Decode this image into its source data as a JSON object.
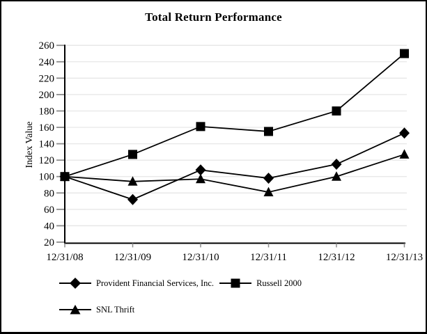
{
  "chart_data": {
    "type": "line",
    "title": "Total Return Performance",
    "xlabel": "",
    "ylabel": "Index Value",
    "categories": [
      "12/31/08",
      "12/31/09",
      "12/31/10",
      "12/31/11",
      "12/31/12",
      "12/31/13"
    ],
    "series": [
      {
        "name": "Provident Financial Services, Inc.",
        "marker": "diamond",
        "values": [
          100,
          72,
          108,
          98,
          115,
          153
        ]
      },
      {
        "name": "Russell 2000",
        "marker": "square",
        "values": [
          100,
          127,
          161,
          155,
          180,
          250
        ]
      },
      {
        "name": "SNL Thrift",
        "marker": "triangle",
        "values": [
          100,
          94,
          97,
          81,
          100,
          127
        ]
      }
    ],
    "ylim": [
      20,
      260
    ],
    "ytick_step": 20,
    "grid": "horizontal",
    "legend_position": "bottom-left",
    "colors": {
      "series": "#000000",
      "axis": "#000000",
      "grid": "#e6e6e6",
      "tick": "#8c8c8c",
      "text": "#000000",
      "background": "#ffffff"
    }
  }
}
